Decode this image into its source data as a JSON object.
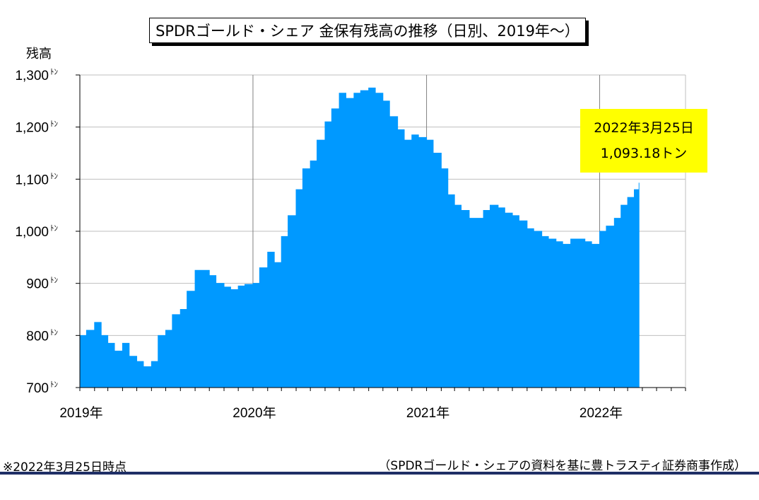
{
  "chart_data": {
    "type": "area",
    "title": "SPDRゴールド・シェア 金保有残高の推移（日別、2019年～）",
    "ylabel": "残高",
    "ylim": [
      700,
      1300
    ],
    "yticks": [
      {
        "value": 700,
        "label": "700"
      },
      {
        "value": 800,
        "label": "800"
      },
      {
        "value": 900,
        "label": "900"
      },
      {
        "value": 1000,
        "label": "1,000"
      },
      {
        "value": 1100,
        "label": "1,100"
      },
      {
        "value": 1200,
        "label": "1,200"
      },
      {
        "value": 1300,
        "label": "1,300"
      }
    ],
    "ytick_unit": "ﾄﾝ",
    "xlim": [
      "2019-01-01",
      "2022-07-01"
    ],
    "xticks": [
      {
        "value": "2019-01-01",
        "label": "2019年"
      },
      {
        "value": "2020-01-01",
        "label": "2020年"
      },
      {
        "value": "2021-01-01",
        "label": "2021年"
      },
      {
        "value": "2022-01-01",
        "label": "2022年"
      }
    ],
    "grid": true,
    "color": "#0099ff",
    "series": [
      {
        "x": [
          "2019-01-01",
          "2019-01-15",
          "2019-02-01",
          "2019-02-15",
          "2019-03-01",
          "2019-03-15",
          "2019-04-01",
          "2019-04-15",
          "2019-05-01",
          "2019-05-15",
          "2019-06-01",
          "2019-06-15",
          "2019-07-01",
          "2019-07-15",
          "2019-08-01",
          "2019-08-15",
          "2019-09-01",
          "2019-09-15",
          "2019-10-01",
          "2019-10-15",
          "2019-11-01",
          "2019-11-15",
          "2019-12-01",
          "2019-12-15",
          "2020-01-01",
          "2020-01-15",
          "2020-02-01",
          "2020-02-15",
          "2020-03-01",
          "2020-03-15",
          "2020-04-01",
          "2020-04-15",
          "2020-05-01",
          "2020-05-15",
          "2020-06-01",
          "2020-06-15",
          "2020-07-01",
          "2020-07-15",
          "2020-08-01",
          "2020-08-15",
          "2020-09-01",
          "2020-09-15",
          "2020-10-01",
          "2020-10-15",
          "2020-11-01",
          "2020-11-15",
          "2020-12-01",
          "2020-12-15",
          "2021-01-01",
          "2021-01-15",
          "2021-02-01",
          "2021-02-15",
          "2021-03-01",
          "2021-03-15",
          "2021-04-01",
          "2021-04-15",
          "2021-05-01",
          "2021-05-15",
          "2021-06-01",
          "2021-06-15",
          "2021-07-01",
          "2021-07-15",
          "2021-08-01",
          "2021-08-15",
          "2021-09-01",
          "2021-09-15",
          "2021-10-01",
          "2021-10-15",
          "2021-11-01",
          "2021-11-15",
          "2021-12-01",
          "2021-12-15",
          "2022-01-01",
          "2022-01-15",
          "2022-02-01",
          "2022-02-15",
          "2022-03-01",
          "2022-03-15",
          "2022-03-25"
        ],
        "y": [
          800,
          810,
          825,
          800,
          785,
          770,
          785,
          760,
          750,
          740,
          750,
          800,
          810,
          840,
          850,
          885,
          925,
          925,
          915,
          900,
          893,
          888,
          895,
          898,
          900,
          930,
          960,
          940,
          990,
          1030,
          1080,
          1120,
          1135,
          1175,
          1210,
          1235,
          1265,
          1255,
          1265,
          1270,
          1275,
          1265,
          1250,
          1220,
          1195,
          1175,
          1185,
          1180,
          1175,
          1150,
          1120,
          1070,
          1050,
          1040,
          1025,
          1025,
          1040,
          1050,
          1045,
          1035,
          1030,
          1020,
          1005,
          1000,
          990,
          985,
          980,
          975,
          985,
          985,
          980,
          975,
          1000,
          1010,
          1025,
          1050,
          1065,
          1080,
          1093.18
        ]
      }
    ]
  },
  "callout": {
    "date": "2022年3月25日",
    "value": "1,093.18トン"
  },
  "notes": {
    "asof": "※2022年3月25日時点",
    "source": "（SPDRゴールド・シェアの資料を基に豊トラスティ証券商事作成）"
  }
}
